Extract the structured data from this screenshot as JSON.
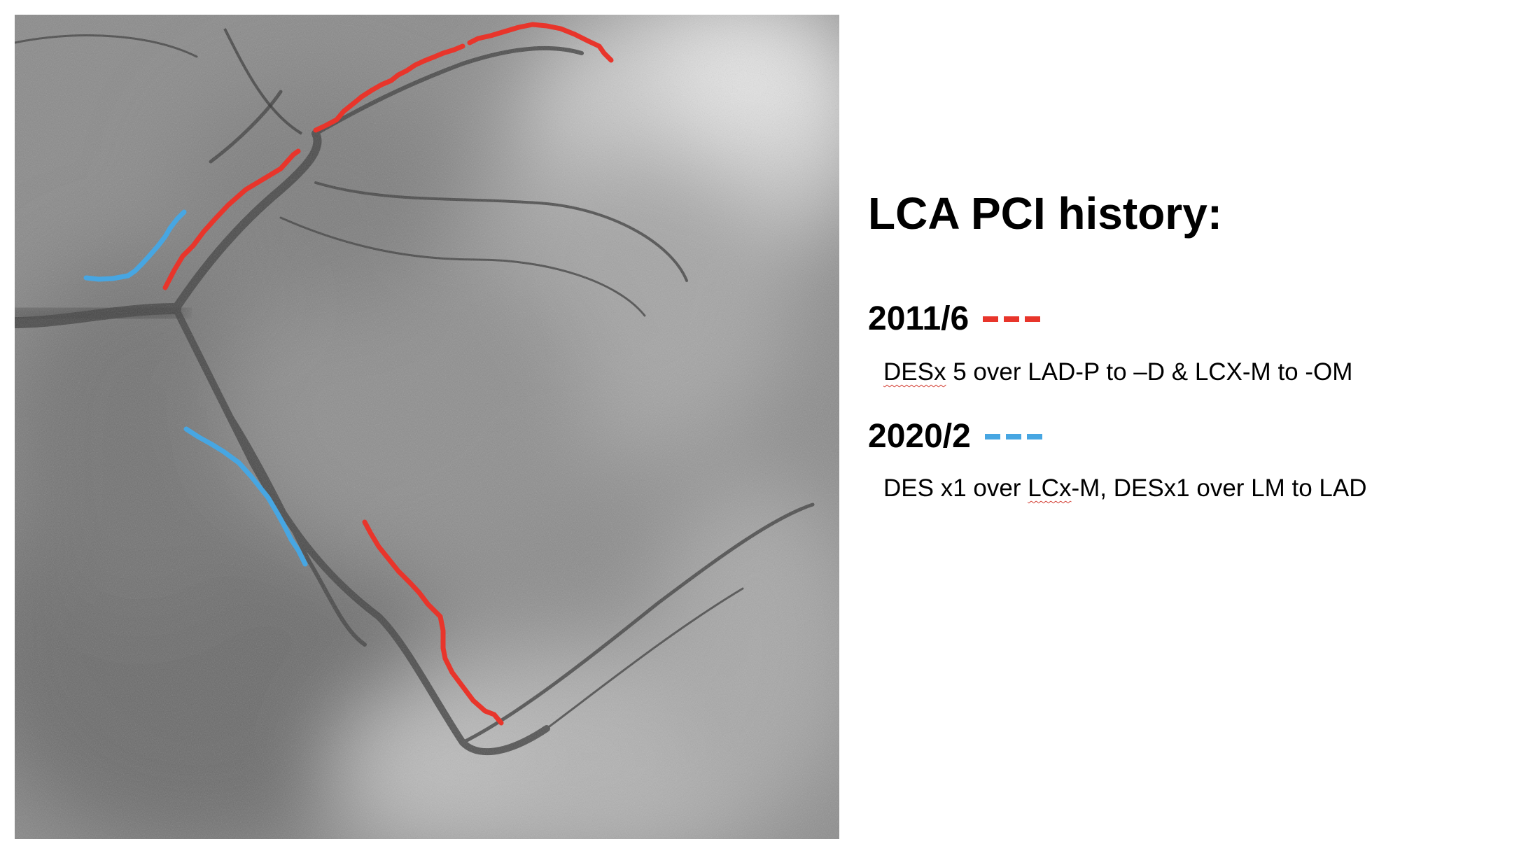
{
  "title": "LCA PCI history:",
  "colors": {
    "series_2011": "#e8352b",
    "series_2020": "#47a6e2",
    "spell_underline": "#d23b30",
    "background": "#ffffff"
  },
  "figure": {
    "description_kind": "angiogram-image"
  },
  "entries": [
    {
      "date": "2011/6",
      "legend_color": "#e8352b",
      "desc_pre": "",
      "desc_flagged": "DESx",
      "desc_post": " 5 over LAD-P to –D & LCX-M to -OM"
    },
    {
      "date": "2020/2",
      "legend_color": "#47a6e2",
      "desc_pre": "DES x1 over ",
      "desc_flagged": "LCx",
      "desc_post": "-M, DESx1 over LM to LAD"
    }
  ]
}
